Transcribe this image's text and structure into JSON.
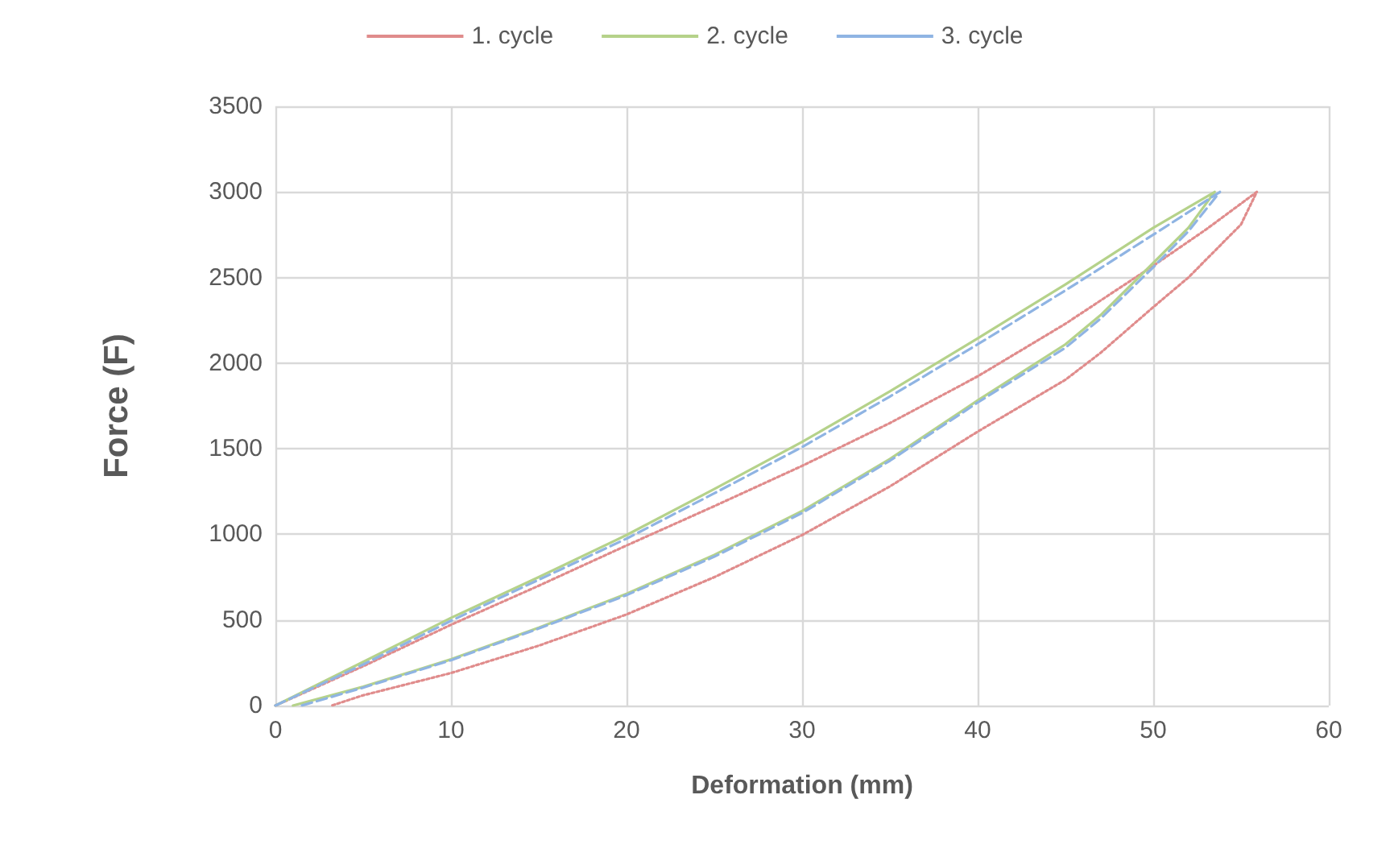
{
  "chart_data": {
    "type": "line",
    "xlabel": "Deformation (mm)",
    "ylabel": "Force (F)",
    "xlim": [
      0,
      60
    ],
    "xticks": [
      0,
      10,
      20,
      30,
      40,
      50,
      60
    ],
    "ylim": [
      0,
      3500
    ],
    "yticks": [
      0,
      500,
      1000,
      1500,
      2000,
      2500,
      3000,
      3500
    ],
    "grid": true,
    "legend": "top",
    "marker": "none",
    "series": [
      {
        "name": "1. cycle",
        "color": "#e08c8c",
        "line_style": "dotted",
        "x": [
          0,
          5,
          10,
          15,
          20,
          25,
          30,
          35,
          40,
          45,
          50,
          53,
          55.9,
          55,
          52,
          50,
          47,
          45,
          40,
          35,
          30,
          25,
          20,
          15,
          10,
          5,
          3.2
        ],
        "values": [
          0,
          230,
          472,
          700,
          935,
          1165,
          1400,
          1650,
          1923,
          2230,
          2569,
          2780,
          3000,
          2810,
          2500,
          2327,
          2060,
          1903,
          1600,
          1280,
          996,
          750,
          532,
          350,
          190,
          60,
          0
        ]
      },
      {
        "name": "2. cycle",
        "color": "#b5d28a",
        "line_style": "solid",
        "x": [
          0,
          5,
          10,
          15,
          20,
          25,
          30,
          35,
          40,
          45,
          50,
          53.5,
          52,
          50,
          47,
          45,
          40,
          35,
          30,
          25,
          20,
          15,
          10,
          5,
          1
        ],
        "values": [
          0,
          255,
          512,
          750,
          996,
          1265,
          1540,
          1835,
          2145,
          2460,
          2790,
          3000,
          2790,
          2585,
          2280,
          2110,
          1782,
          1440,
          1137,
          880,
          653,
          455,
          270,
          110,
          0
        ]
      },
      {
        "name": "3. cycle",
        "color": "#8fb4e3",
        "line_style": "dashed",
        "x": [
          0,
          5,
          10,
          15,
          20,
          25,
          30,
          35,
          40,
          45,
          50,
          53.8,
          52,
          50,
          47,
          45,
          40,
          35,
          30,
          25,
          20,
          15,
          10,
          5,
          1.5
        ],
        "values": [
          0,
          240,
          495,
          735,
          975,
          1240,
          1510,
          1805,
          2110,
          2425,
          2750,
          3000,
          2770,
          2560,
          2260,
          2090,
          1770,
          1430,
          1125,
          870,
          645,
          450,
          265,
          105,
          0
        ]
      }
    ]
  }
}
